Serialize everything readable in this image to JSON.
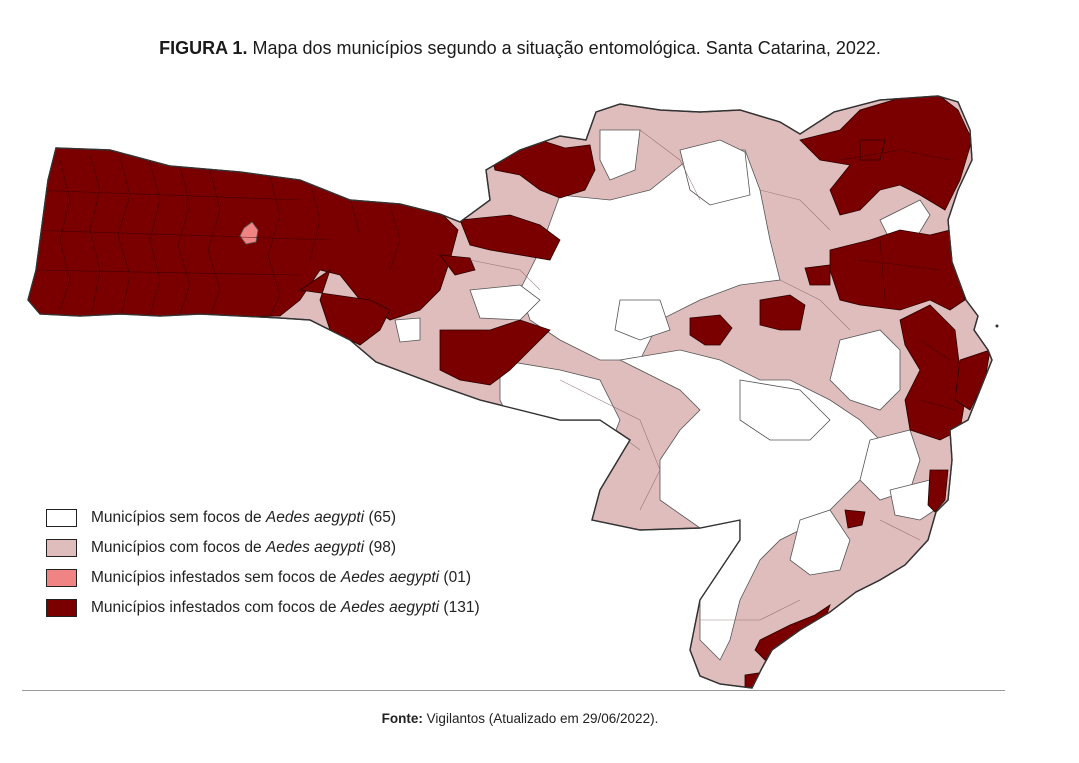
{
  "title": {
    "label": "FIGURA 1.",
    "text": "Mapa dos municípios segundo a situação entomológica. Santa Catarina, 2022."
  },
  "legend": [
    {
      "prefix": "Municípios sem focos de ",
      "species": "Aedes aegypti",
      "count": " (65)",
      "color": "#ffffff"
    },
    {
      "prefix": "Municípios com focos de ",
      "species": "Aedes aegypti",
      "count": " (98)",
      "color": "#dfbdbd"
    },
    {
      "prefix": "Municípios infestados sem focos de ",
      "species": "Aedes aegypti",
      "count": " (01)",
      "color": "#f08484"
    },
    {
      "prefix": "Municípios infestados com focos de ",
      "species": "Aedes aegypti",
      "count": " (131)",
      "color": "#7a0000"
    }
  ],
  "source": {
    "label": "Fonte:",
    "text": " Vigilantos (Atualizado em 29/06/2022)."
  },
  "map_colors": {
    "outline": "#3a3a3a",
    "no_foci": "#ffffff",
    "with_foci": "#dfbdbd",
    "infested_no_foci": "#f08484",
    "infested_with_foci": "#7a0000"
  }
}
